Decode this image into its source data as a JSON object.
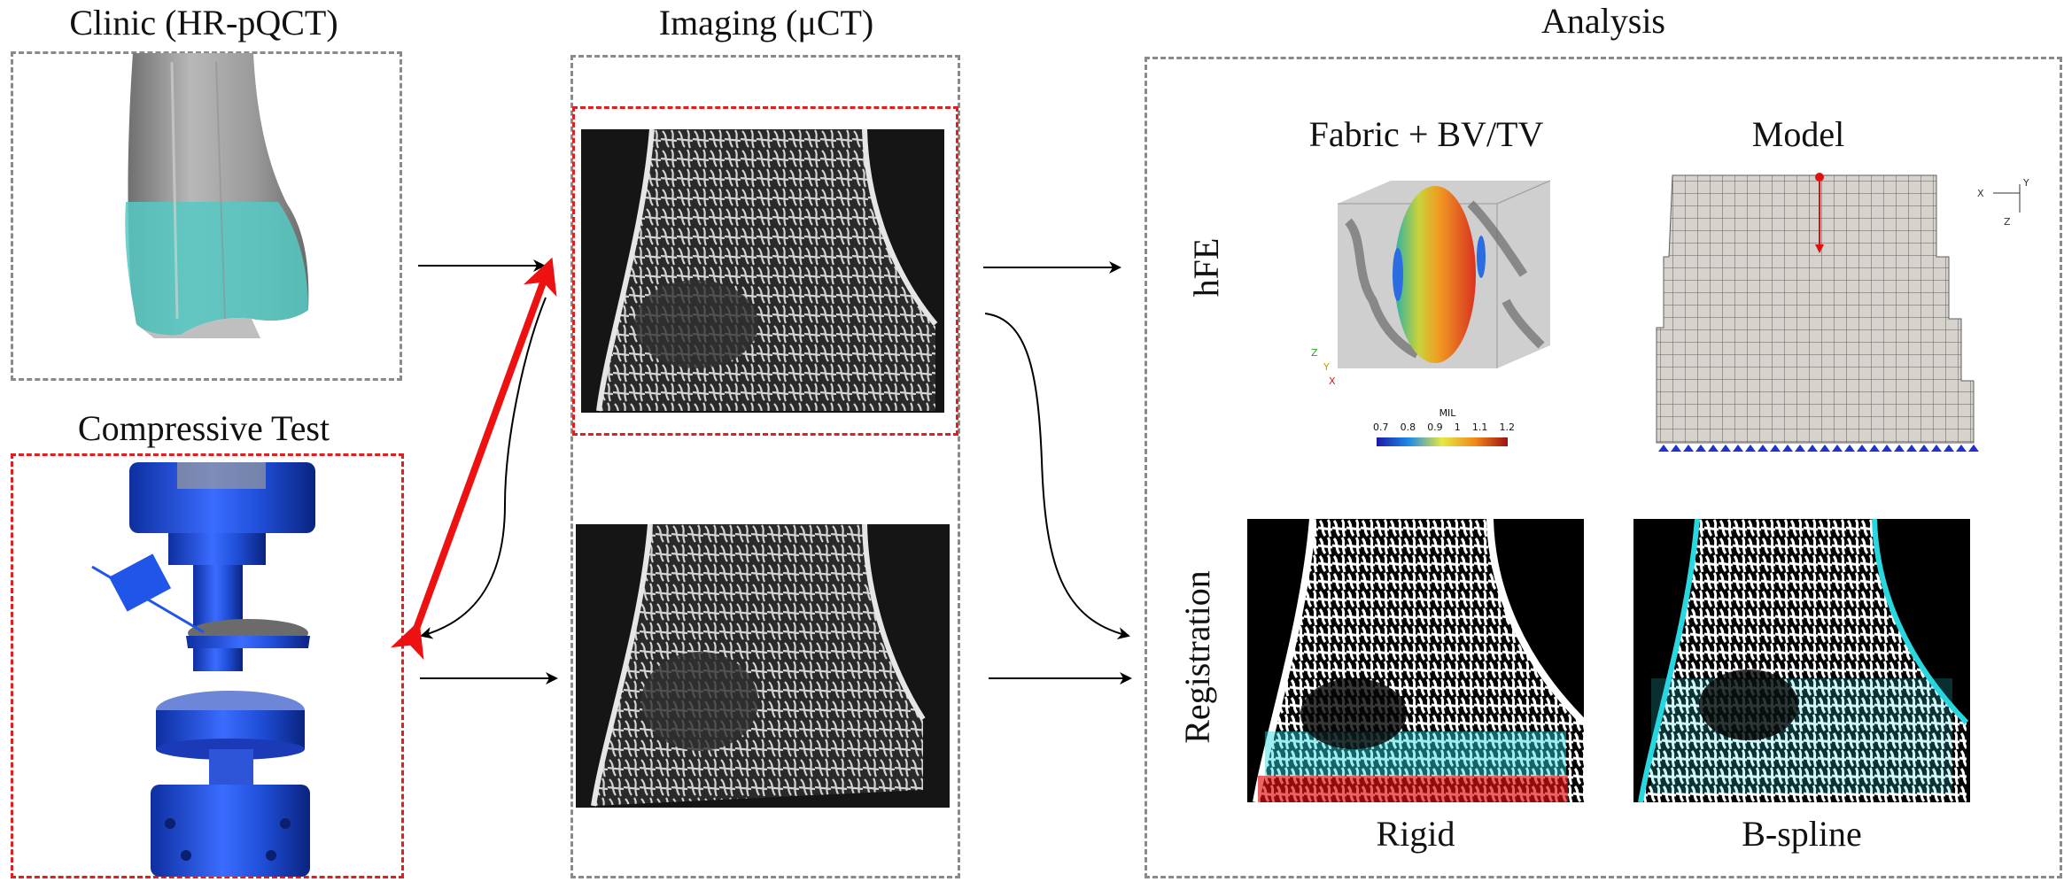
{
  "clinic": {
    "title": "Clinic (HR-pQCT)"
  },
  "compressive": {
    "title": "Compressive Test"
  },
  "imaging": {
    "title": "Imaging (μCT)"
  },
  "analysis": {
    "title": "Analysis",
    "rows": {
      "hfe": "hFE",
      "registration": "Registration"
    },
    "fabric": {
      "title": "Fabric + BV/TV",
      "colorbar_label": "MIL",
      "colorbar_ticks": [
        "0.7",
        "0.8",
        "0.9",
        "1",
        "1.1",
        "1.2"
      ],
      "axes": {
        "z": "Z",
        "y": "Y",
        "x": "X"
      }
    },
    "model": {
      "title": "Model",
      "axes": {
        "x": "X",
        "y": "Y",
        "z": "Z"
      }
    },
    "registration": {
      "rigid": "Rigid",
      "bspline": "B-spline"
    }
  },
  "colors": {
    "box_gray": "#8a8a8a",
    "box_red": "#e02020",
    "bone_overlay": "#56c9c2",
    "machine_blue": "#1c4fe0",
    "mesh_fill": "#d7d3cc",
    "arrow_red": "#ee1111",
    "cyan": "#27d8e0"
  }
}
